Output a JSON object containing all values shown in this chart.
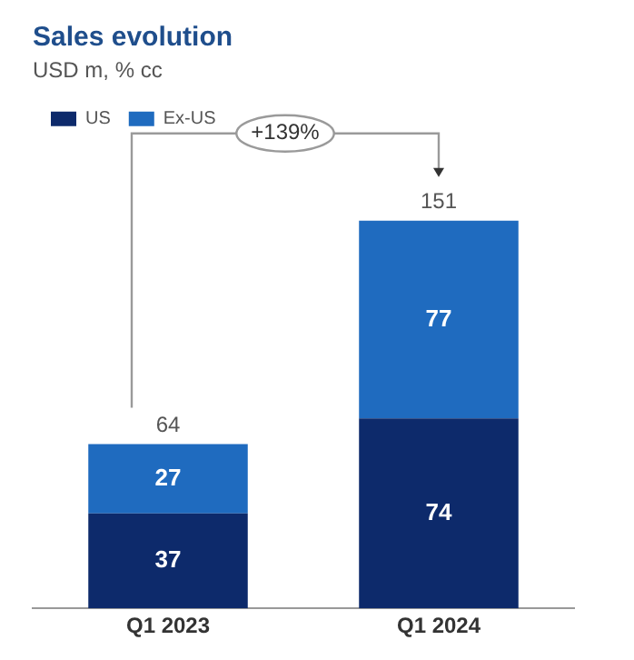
{
  "chart_data": {
    "type": "bar",
    "title": "Sales evolution",
    "subtitle": "USD m, % cc",
    "categories": [
      "Q1 2023",
      "Q1 2024"
    ],
    "series": [
      {
        "name": "US",
        "color": "#0d2a6b",
        "values": [
          37,
          74
        ]
      },
      {
        "name": "Ex-US",
        "color": "#1f6bbf",
        "values": [
          27,
          77
        ]
      }
    ],
    "stacked": true,
    "data_labels": true,
    "totals": [
      "64",
      "151"
    ],
    "annotations": [
      "+139%"
    ],
    "legend": "top left",
    "grid": false
  }
}
